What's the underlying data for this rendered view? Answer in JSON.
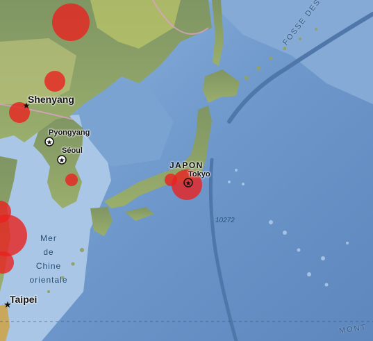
{
  "labels": {
    "shenyang": "Shenyang",
    "pyongyang": "Pyongyang",
    "seoul": "Séoul",
    "japan": "JAPON",
    "tokyo": "Tokyo",
    "taipei": "Taipei",
    "sea_line1": "Mer",
    "sea_line2": "de",
    "sea_line3": "Chine",
    "sea_line4": "orientale",
    "kuril_trench": "FOSSE DES KOURIL",
    "mont": "MONT",
    "depth": "10272"
  },
  "colors": {
    "ocean": "#6f97c8",
    "land": "#8fa268",
    "earthquake_marker": "#e8221f"
  }
}
